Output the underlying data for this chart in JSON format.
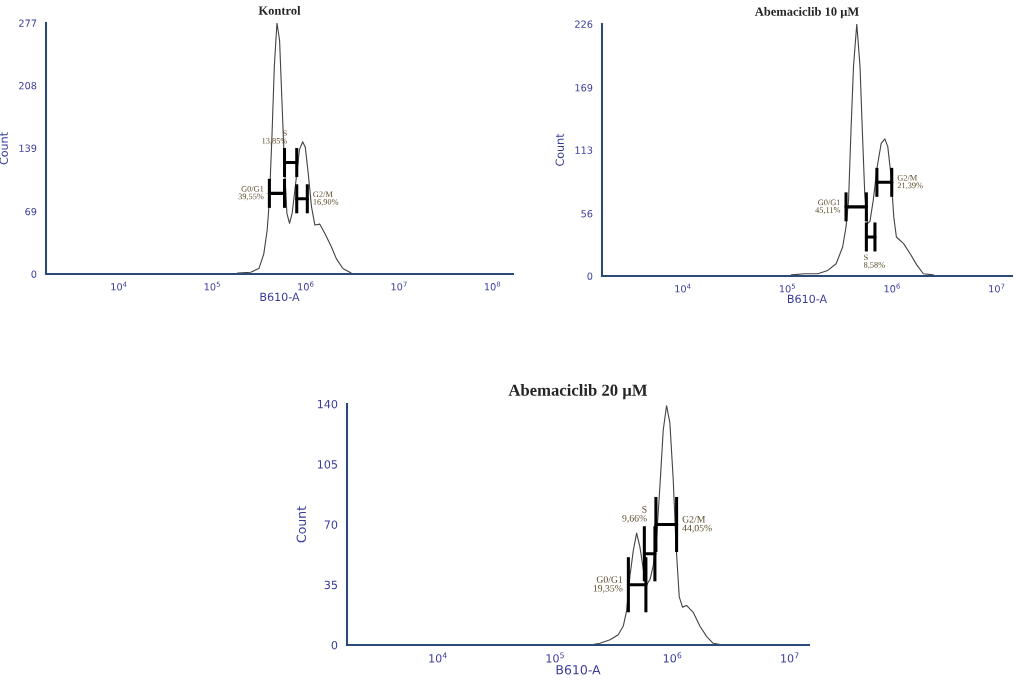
{
  "chart_data": [
    {
      "type": "line",
      "title": "Kontrol",
      "xlabel": "B610-A",
      "ylabel": "Count",
      "log": "x",
      "xlim": [
        1660,
        166000000
      ],
      "ylim": [
        0,
        277
      ],
      "xticks": [
        {
          "value": 10000,
          "label": "10$^{4}$"
        },
        {
          "value": 100000,
          "label": "10$^{5}$"
        },
        {
          "value": 1000000,
          "label": "10$^{6}$"
        },
        {
          "value": 10000000,
          "label": "10$^{7}$"
        },
        {
          "value": 100000000,
          "label": "10$^{8}$"
        }
      ],
      "yticks": [
        0,
        69,
        139,
        208,
        277
      ],
      "series": [
        {
          "color": "#444444",
          "x": [
            186000,
            258000,
            316000,
            356000,
            387000,
            409000,
            437000,
            462000,
            493000,
            526000,
            557000,
            594000,
            630000,
            672000,
            717000,
            790000,
            857000,
            930000,
            991000,
            1066000,
            1156000,
            1255000,
            1419000,
            1603000,
            1885000,
            2130000,
            2505000,
            3070000
          ],
          "values": [
            1,
            2,
            6,
            22,
            48,
            81,
            155,
            229,
            277,
            258,
            192,
            118,
            67,
            56,
            67,
            104,
            137,
            146,
            140,
            111,
            74,
            54,
            55,
            45,
            30,
            17,
            6,
            1
          ]
        },
        {
          "color": "#000000",
          "x": [
            409000,
            594000
          ],
          "values": [
            89,
            89
          ],
          "errors": [
            16,
            16
          ]
        },
        {
          "color": "#000000",
          "x": [
            594000,
            803000
          ],
          "values": [
            123,
            123
          ],
          "errors": [
            16,
            16
          ]
        },
        {
          "color": "#000000",
          "x": [
            803000,
            1042000
          ],
          "values": [
            83,
            83
          ],
          "errors": [
            16,
            16
          ]
        }
      ],
      "annotations": [
        {
          "text": "G0/G1\n39,55%",
          "x": 409000,
          "y": 89
        },
        {
          "text": "S\n13,85%",
          "x": 594000,
          "y": 139
        },
        {
          "text": "G2/M\n16,90%",
          "x": 1042000,
          "y": 83
        }
      ]
    },
    {
      "type": "line",
      "title": "Abemaciclib 10 µM",
      "xlabel": "B610-A",
      "ylabel": "Count",
      "log": "x",
      "xlim": [
        1690,
        14000000
      ],
      "ylim": [
        0,
        226
      ],
      "xticks": [
        {
          "value": 10000,
          "label": "10$^{4}$"
        },
        {
          "value": 100000,
          "label": "10$^{5}$"
        },
        {
          "value": 1000000,
          "label": "10$^{6}$"
        },
        {
          "value": 10000000,
          "label": "10$^{7}$"
        }
      ],
      "yticks": [
        0,
        56,
        113,
        169,
        226
      ],
      "series": [
        {
          "color": "#444444",
          "x": [
            109000,
            146000,
            195000,
            243000,
            292000,
            337000,
            363000,
            384000,
            404000,
            428000,
            460000,
            494000,
            521000,
            548000,
            581000,
            615000,
            661000,
            721000,
            787000,
            853000,
            910000,
            979000,
            1038000,
            1100000,
            1289000,
            1489000,
            1722000,
            1991000,
            2476000
          ],
          "values": [
            1,
            2,
            2,
            5,
            11,
            26,
            44,
            68,
            128,
            188,
            226,
            188,
            128,
            74,
            47,
            49,
            68,
            98,
            119,
            123,
            116,
            89,
            53,
            35,
            29,
            20,
            10,
            2,
            1
          ]
        },
        {
          "color": "#000000",
          "x": [
            363000,
            568000
          ],
          "values": [
            62,
            62
          ],
          "errors": [
            13,
            13
          ]
        },
        {
          "color": "#000000",
          "x": [
            568000,
            686000
          ],
          "values": [
            35,
            35
          ],
          "errors": [
            13,
            13
          ]
        },
        {
          "color": "#000000",
          "x": [
            716000,
            993000
          ],
          "values": [
            84,
            84
          ],
          "errors": [
            13,
            13
          ]
        }
      ],
      "annotations": [
        {
          "text": "G0/G1\n45,11%",
          "x": 363000,
          "y": 62
        },
        {
          "text": "S\n8,58%",
          "x": 568000,
          "y": 22
        },
        {
          "text": "G2/M\n21,39%",
          "x": 993000,
          "y": 84
        }
      ]
    },
    {
      "type": "line",
      "title": "Abemaciclib 20 µM",
      "xlabel": "B610-A",
      "ylabel": "Count",
      "log": "x",
      "xlim": [
        1680,
        14600000
      ],
      "ylim": [
        0,
        140
      ],
      "xticks": [
        {
          "value": 10000,
          "label": "10$^{4}$"
        },
        {
          "value": 100000,
          "label": "10$^{5}$"
        },
        {
          "value": 1000000,
          "label": "10$^{6}$"
        },
        {
          "value": 10000000,
          "label": "10$^{7}$"
        }
      ],
      "yticks": [
        0,
        35,
        70,
        105,
        140
      ],
      "series": [
        {
          "color": "#444444",
          "x": [
            198000,
            241000,
            294000,
            345000,
            381000,
            407000,
            434000,
            464000,
            495000,
            528000,
            564000,
            602000,
            643000,
            686000,
            733000,
            782000,
            835000,
            891000,
            951000,
            1016000,
            1071000,
            1143000,
            1220000,
            1319000,
            1503000,
            1713000,
            1953000,
            2225000,
            2708000
          ],
          "values": [
            0,
            1,
            3,
            6,
            11,
            20,
            40,
            55,
            65,
            57,
            44,
            35,
            38,
            46,
            63,
            92,
            125,
            139,
            129,
            96,
            59,
            28,
            22,
            23,
            19,
            11,
            5,
            1,
            0
          ]
        },
        {
          "color": "#000000",
          "x": [
            421000,
            594000
          ],
          "values": [
            35,
            35
          ],
          "errors": [
            16,
            16
          ]
        },
        {
          "color": "#000000",
          "x": [
            576000,
            709000
          ],
          "values": [
            53,
            53
          ],
          "errors": [
            16,
            16
          ]
        },
        {
          "color": "#000000",
          "x": [
            723000,
            1085000
          ],
          "values": [
            70,
            70
          ],
          "errors": [
            16,
            16
          ]
        }
      ],
      "annotations": [
        {
          "text": "G0/G1\n19,35%",
          "x": 421000,
          "y": 35
        },
        {
          "text": "S\n9,66%",
          "x": 576000,
          "y": 69
        },
        {
          "text": "G2/M\n44,05%",
          "x": 1085000,
          "y": 70
        }
      ]
    }
  ]
}
